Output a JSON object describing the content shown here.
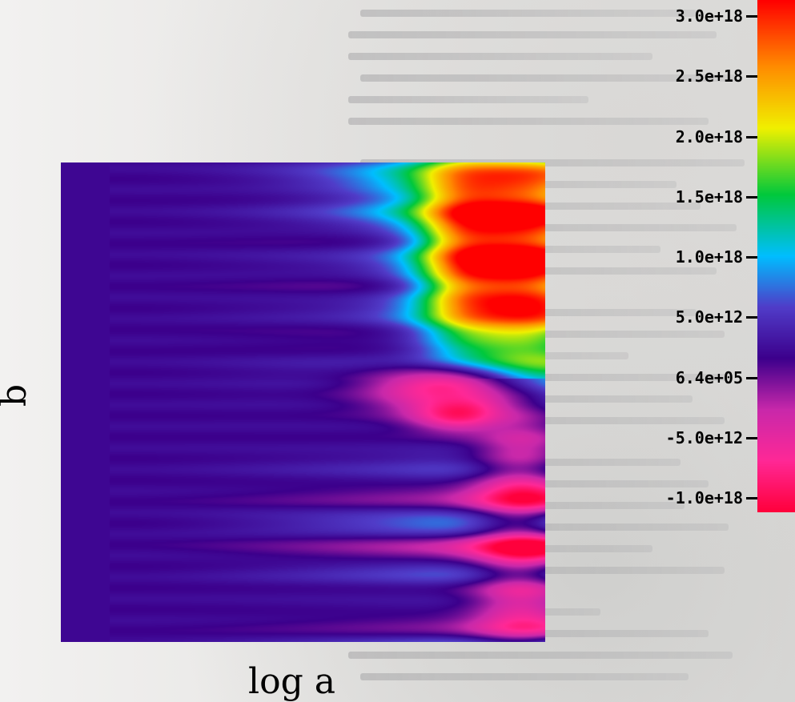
{
  "chart_data": {
    "type": "heatmap",
    "title": "",
    "xlabel": "log a",
    "ylabel": "b",
    "colorbar": {
      "ticks": [
        "3.0e+18",
        "2.5e+18",
        "2.0e+18",
        "1.5e+18",
        "1.0e+18",
        "5.0e+12",
        "6.4e+05",
        "-5.0e+12",
        "-1.0e+18"
      ],
      "colors": [
        "#ff0000",
        "#ff8000",
        "#ffff00",
        "#00c000",
        "#00c0ff",
        "#7070ff",
        "#3a0090",
        "#ff40a0",
        "#ff0050"
      ]
    },
    "features": [
      {
        "region": "right-upper",
        "color": "red",
        "description": "peak"
      },
      {
        "region": "right-middle",
        "color": "pink",
        "description": "ridge"
      }
    ]
  }
}
